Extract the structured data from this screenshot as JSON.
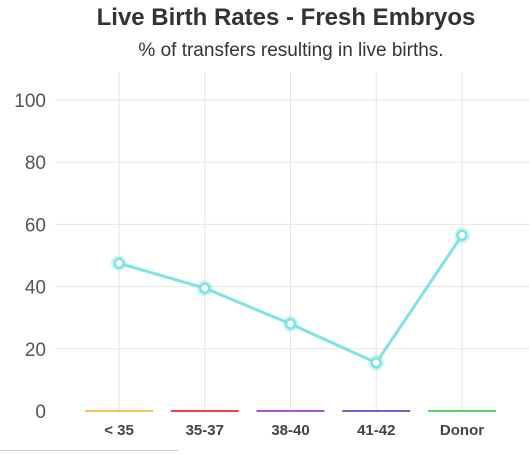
{
  "chart_data": {
    "type": "line",
    "title": "Live Birth Rates - Fresh Embryos",
    "subtitle": "% of transfers resulting in live births.",
    "categories": [
      "< 35",
      "35-37",
      "38-40",
      "41-42",
      "Donor"
    ],
    "values": [
      47.5,
      39.5,
      28,
      15.5,
      56.5
    ],
    "category_colors": [
      "#f5c35a",
      "#e8454f",
      "#b44fd8",
      "#6f63e0",
      "#54d85a"
    ],
    "line_color": "#7ee3e3",
    "ylim": [
      0,
      100
    ],
    "yticks": [
      0,
      20,
      40,
      60,
      80,
      100
    ],
    "grid": true,
    "legend": "none"
  }
}
